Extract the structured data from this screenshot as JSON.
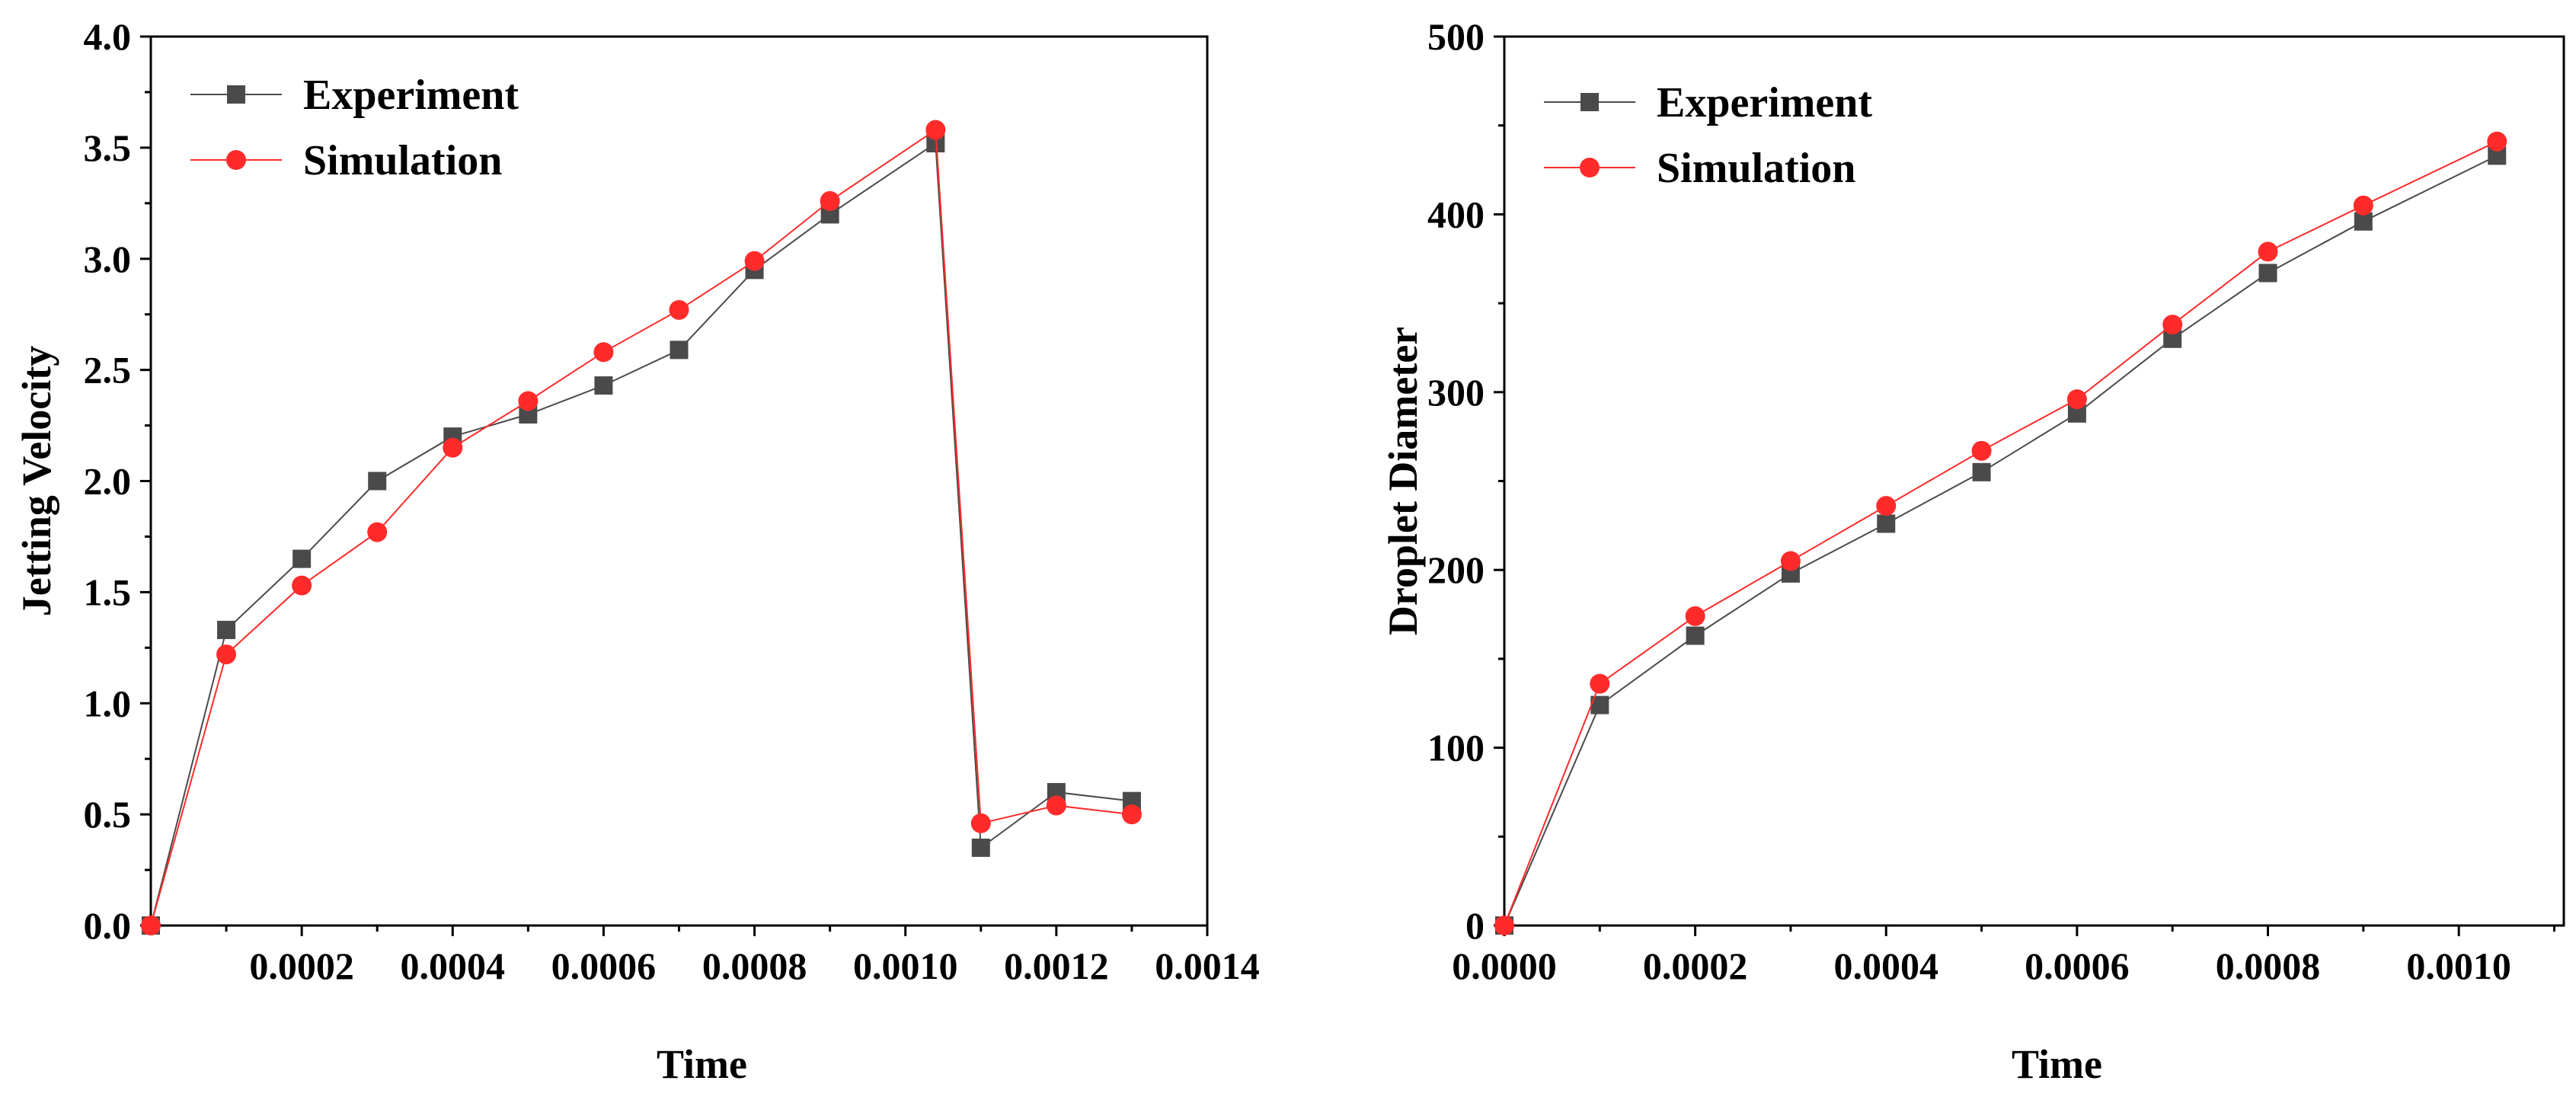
{
  "chart_data": [
    {
      "type": "line",
      "xlabel": "Time",
      "ylabel": "Jetting Velocity",
      "xlim": [
        0,
        0.0014
      ],
      "ylim": [
        0,
        4.0
      ],
      "x_ticks": [
        0.0002,
        0.0004,
        0.0006,
        0.0008,
        0.001,
        0.0012,
        0.0014
      ],
      "x_tick_labels": [
        "0.0002",
        "0.0004",
        "0.0006",
        "0.0008",
        "0.0010",
        "0.0012",
        "0.0014"
      ],
      "y_ticks": [
        0,
        0.5,
        1.0,
        1.5,
        2.0,
        2.5,
        3.0,
        3.5,
        4.0
      ],
      "y_tick_labels": [
        "0.0",
        "0.5",
        "1.0",
        "1.5",
        "2.0",
        "2.5",
        "3.0",
        "3.5",
        "4.0"
      ],
      "legend_position": "top-left",
      "series": [
        {
          "name": "Experiment",
          "marker": "square",
          "color": "#4a4a4a",
          "x": [
            0,
            0.0001,
            0.0002,
            0.0003,
            0.0004,
            0.0005,
            0.0006,
            0.0007,
            0.0008,
            0.0009,
            0.00104,
            0.0011,
            0.0012,
            0.0013
          ],
          "values": [
            0.0,
            1.33,
            1.65,
            2.0,
            2.2,
            2.3,
            2.43,
            2.59,
            2.95,
            3.2,
            3.52,
            0.35,
            0.6,
            0.56
          ]
        },
        {
          "name": "Simulation",
          "marker": "circle",
          "color": "#ff2b2b",
          "x": [
            0,
            0.0001,
            0.0002,
            0.0003,
            0.0004,
            0.0005,
            0.0006,
            0.0007,
            0.0008,
            0.0009,
            0.00104,
            0.0011,
            0.0012,
            0.0013
          ],
          "values": [
            0.0,
            1.22,
            1.53,
            1.77,
            2.15,
            2.36,
            2.58,
            2.77,
            2.99,
            3.26,
            3.58,
            0.46,
            0.54,
            0.5
          ]
        }
      ]
    },
    {
      "type": "line",
      "xlabel": "Time",
      "ylabel": "Droplet Diameter",
      "xlim": [
        0,
        0.00111
      ],
      "ylim": [
        0,
        500
      ],
      "x_ticks": [
        0,
        0.0002,
        0.0004,
        0.0006,
        0.0008,
        0.001
      ],
      "x_tick_labels": [
        "0.0000",
        "0.0002",
        "0.0004",
        "0.0006",
        "0.0008",
        "0.0010"
      ],
      "y_ticks": [
        0,
        100,
        200,
        300,
        400,
        500
      ],
      "y_tick_labels": [
        "0",
        "100",
        "200",
        "300",
        "400",
        "500"
      ],
      "legend_position": "top-left",
      "series": [
        {
          "name": "Experiment",
          "marker": "square",
          "color": "#4a4a4a",
          "x": [
            0,
            0.0001,
            0.0002,
            0.0003,
            0.0004,
            0.0005,
            0.0006,
            0.0007,
            0.0008,
            0.0009,
            0.00104
          ],
          "values": [
            0,
            124,
            163,
            198,
            226,
            255,
            288,
            330,
            367,
            396,
            433
          ]
        },
        {
          "name": "Simulation",
          "marker": "circle",
          "color": "#ff2b2b",
          "x": [
            0,
            0.0001,
            0.0002,
            0.0003,
            0.0004,
            0.0005,
            0.0006,
            0.0007,
            0.0008,
            0.0009,
            0.00104
          ],
          "values": [
            0,
            136,
            174,
            205,
            236,
            267,
            296,
            338,
            379,
            405,
            441
          ]
        }
      ]
    }
  ]
}
